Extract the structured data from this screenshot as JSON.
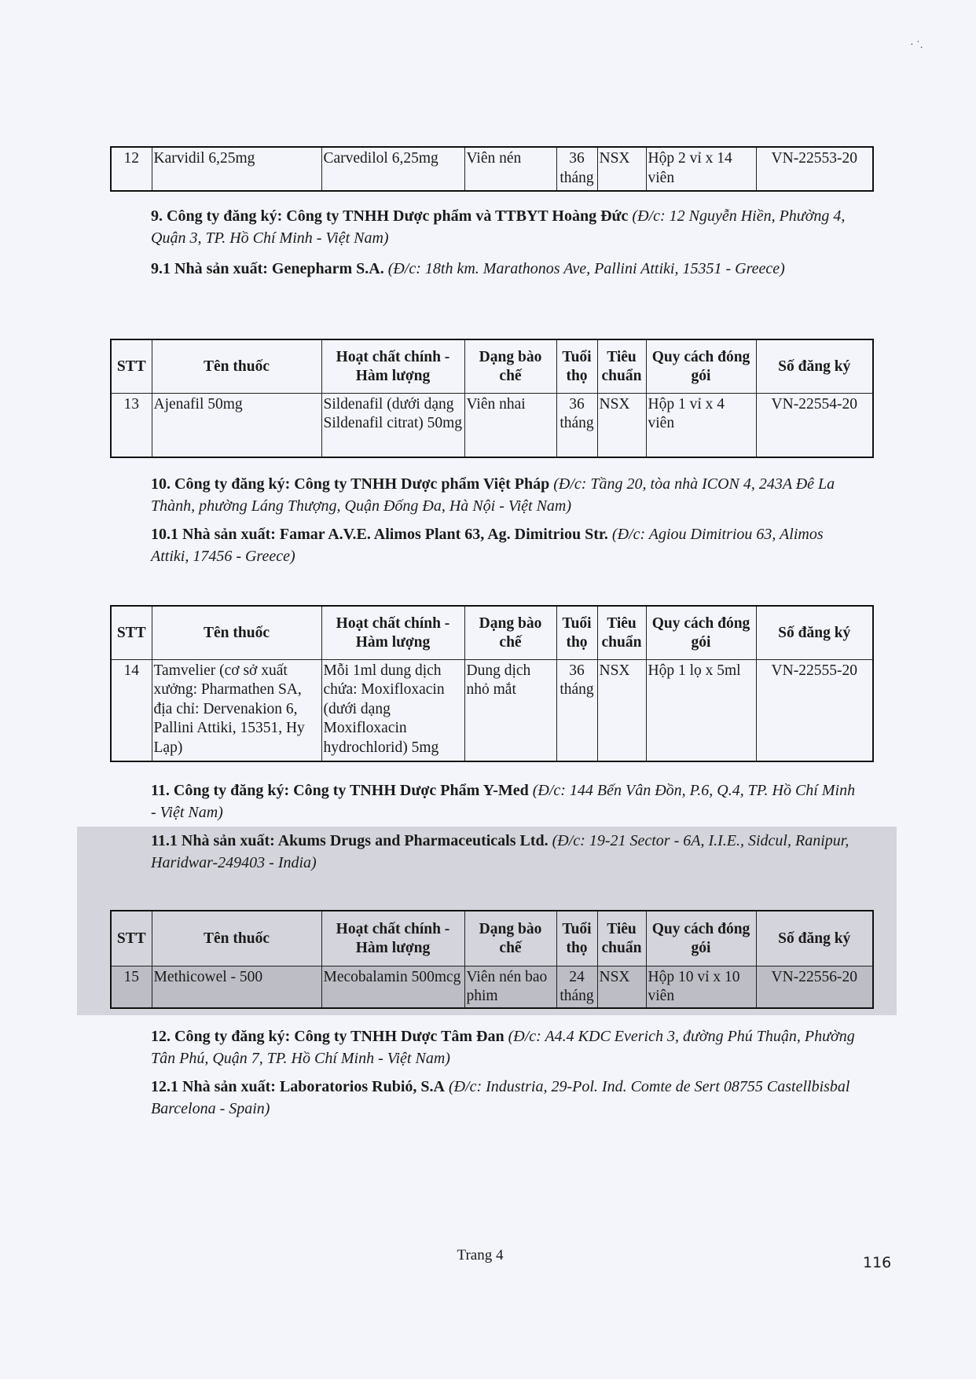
{
  "columns": [
    "STT",
    "Tên thuốc",
    "Hoạt chất chính - Hàm lượng",
    "Dạng bào chế",
    "Tuổi thọ",
    "Tiêu chuẩn",
    "Quy cách đóng gói",
    "Số đăng ký"
  ],
  "table1": {
    "rows": [
      {
        "stt": "12",
        "name": "Karvidil 6,25mg",
        "active": "Carvedilol 6,25mg",
        "form": "Viên nén",
        "shelf": "36 tháng",
        "std": "NSX",
        "pack": "Hộp 2 vỉ x 14 viên",
        "reg": "VN-22553-20"
      }
    ]
  },
  "section9": {
    "label": "9. Công ty đăng ký: Công ty TNHH Dược phẩm và TTBYT Hoàng Đức",
    "addr": "(Đ/c: 12 Nguyễn Hiền, Phường 4, Quận 3, TP. Hồ Chí Minh - Việt Nam)"
  },
  "section9_1": {
    "label": "9.1 Nhà sản xuất: Genepharm S.A.",
    "addr": "(Đ/c: 18th km. Marathonos Ave, Pallini Attiki, 15351 - Greece)"
  },
  "table2": {
    "rows": [
      {
        "stt": "13",
        "name": "Ajenafil 50mg",
        "active": "Sildenafil (dưới dạng Sildenafil citrat) 50mg",
        "form": "Viên nhai",
        "shelf": "36 tháng",
        "std": "NSX",
        "pack": "Hộp 1 vỉ x 4 viên",
        "reg": "VN-22554-20"
      }
    ]
  },
  "section10": {
    "label": "10. Công ty đăng ký: Công ty TNHH Dược phẩm Việt Pháp",
    "addr": "(Đ/c: Tầng 20, tòa nhà ICON 4, 243A Đê La Thành, phường Láng Thượng, Quận Đống Đa, Hà Nội - Việt Nam)"
  },
  "section10_1": {
    "label": "10.1 Nhà sản xuất: Famar A.V.E. Alimos Plant 63, Ag. Dimitriou Str.",
    "addr": "(Đ/c: Agiou Dimitriou 63, Alimos Attiki, 17456 - Greece)"
  },
  "table3": {
    "rows": [
      {
        "stt": "14",
        "name": "Tamvelier (cơ sở xuất xưởng: Pharmathen SA, địa chỉ: Dervenakion 6, Pallini Attiki, 15351, Hy Lạp)",
        "active": "Mỗi 1ml dung dịch chứa: Moxifloxacin (dưới dạng Moxifloxacin hydrochlorid) 5mg",
        "form": "Dung dịch nhỏ mắt",
        "shelf": "36 tháng",
        "std": "NSX",
        "pack": "Hộp 1 lọ x 5ml",
        "reg": "VN-22555-20"
      }
    ]
  },
  "section11": {
    "label": "11. Công ty đăng ký: Công ty TNHH Dược Phẩm Y-Med",
    "addr": "(Đ/c: 144 Bến Vân Đồn, P.6, Q.4, TP. Hồ Chí Minh - Việt Nam)"
  },
  "section11_1": {
    "label": "11.1 Nhà sản xuất: Akums Drugs and Pharmaceuticals Ltd.",
    "addr": "(Đ/c: 19-21 Sector - 6A, I.I.E., Sidcul, Ranipur, Haridwar-249403 - India)"
  },
  "table4": {
    "rows": [
      {
        "stt": "15",
        "name": "Methicowel - 500",
        "active": "Mecobalamin 500mcg",
        "form": "Viên nén bao phim",
        "shelf": "24 tháng",
        "std": "NSX",
        "pack": "Hộp 10 vỉ x 10 viên",
        "reg": "VN-22556-20"
      }
    ]
  },
  "section12": {
    "label": "12. Công ty đăng ký: Công ty TNHH Dược Tâm Đan",
    "addr": "(Đ/c: A4.4 KDC Everich 3, đường Phú Thuận, Phường Tân Phú, Quận 7, TP. Hồ Chí Minh - Việt Nam)"
  },
  "section12_1": {
    "label": "12.1 Nhà sản xuất: Laboratorios Rubió, S.A",
    "addr": "(Đ/c: Industria, 29-Pol. Ind. Comte de Sert 08755 Castellbisbal Barcelona - Spain)"
  },
  "footer": {
    "page_label": "Trang 4",
    "page_number": "116"
  }
}
